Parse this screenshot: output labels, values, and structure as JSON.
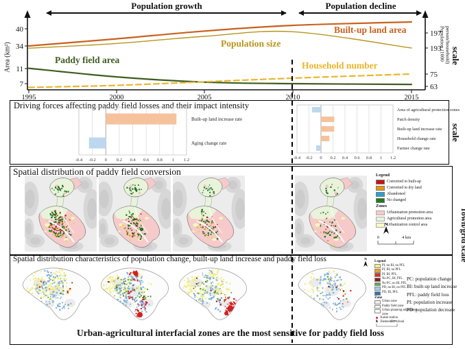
{
  "chart_data": [
    {
      "type": "line",
      "title": "",
      "x": [
        1995,
        2000,
        2005,
        2010,
        2015
      ],
      "period_labels": [
        "Population growth",
        "Population decline"
      ],
      "left_axis": {
        "label": "Area (km²)",
        "ticks": [
          40,
          34,
          11,
          7
        ]
      },
      "right_axis": {
        "label": "Population (1000 person/household)",
        "ticks": [
          197,
          193,
          75,
          63
        ]
      },
      "series": [
        {
          "name": "Built-up land area",
          "axis": "left",
          "color": "#c8611e",
          "dash": "solid",
          "values": [
            34,
            36.5,
            39.2,
            41.2,
            42.4
          ]
        },
        {
          "name": "Population size",
          "axis": "right",
          "color": "#b8941c",
          "dash": "solid",
          "values": [
            192.1,
            194.2,
            196.1,
            197.3,
            193
          ]
        },
        {
          "name": "Paddy field area",
          "axis": "left",
          "color": "#3f5c20",
          "dash": "solid",
          "values": [
            11.3,
            8.8,
            7.4,
            7,
            6.8
          ]
        },
        {
          "name": "Household number",
          "axis": "right",
          "color": "#e9b52a",
          "dash": "dashed",
          "values": [
            62,
            64,
            67.5,
            71,
            75.3
          ]
        }
      ]
    },
    {
      "type": "bar",
      "orientation": "horizontal",
      "categories": [
        "Built-up land increase rate",
        "Aging change rate"
      ],
      "values": [
        1.05,
        -0.25
      ],
      "positive_color": "#f6c29c",
      "negative_color": "#bdd7ee",
      "xticks": [
        -0.4,
        -0.2,
        0,
        0.2,
        0.4,
        0.6,
        0.8,
        1,
        1.2
      ]
    },
    {
      "type": "bar",
      "orientation": "horizontal",
      "categories": [
        "Area of agricultural protection zones",
        "Patch density",
        "Built-up land increase rate",
        "Household change rate",
        "Farmer change rate"
      ],
      "values": [
        -0.15,
        0.22,
        0.22,
        0.14,
        -0.08
      ],
      "positive_color": "#f6c29c",
      "negative_color": "#bdd7ee",
      "xticks": [
        -0.4,
        -0.2,
        0,
        0.2,
        0.4,
        0.6,
        0.8,
        1,
        1.2
      ]
    }
  ],
  "panel2": {
    "title": "Driving forces affecting paddy field losses and their impact intensity",
    "scale_label": "scale"
  },
  "panel3": {
    "title": "Spatial distribution of paddy field conversion",
    "legend": {
      "title": "Legend",
      "items": [
        {
          "label": "Converted to built-up",
          "color": "#cc1111"
        },
        {
          "label": "Converted to dry land",
          "color": "#e8960a"
        },
        {
          "label": "Abandoned",
          "color": "#2e9fd4"
        },
        {
          "label": "No changed",
          "color": "#1f7a1f"
        }
      ],
      "zones_title": "Zones",
      "zones": [
        {
          "label": "Urbanization promotion area",
          "color": "#f6caca"
        },
        {
          "label": "Agricultural promotion area",
          "color": "#e8f3da"
        },
        {
          "label": "Urbanization control area",
          "color": "#fbfbc4"
        }
      ],
      "north_label": "N",
      "scale_zero": "0",
      "scale_end": "4 km"
    },
    "maps": [
      {
        "name": "conversion-map-1995-2000",
        "dots": {
          "green": 110,
          "red": 30,
          "orange": 18,
          "yellow": 14
        }
      },
      {
        "name": "conversion-map-2000-2005",
        "dots": {
          "green": 95,
          "red": 14,
          "orange": 14,
          "yellow": 12
        }
      },
      {
        "name": "conversion-map-2005-2010",
        "dots": {
          "green": 70,
          "red": 8,
          "orange": 10,
          "yellow": 10
        }
      },
      {
        "name": "conversion-map-2010-2015",
        "dots": {
          "green": 45,
          "red": 5,
          "orange": 6,
          "yellow": 8
        }
      }
    ]
  },
  "panel4": {
    "title": "Spatial distribution characteristics of population change, built-up land increase and paddy field loss",
    "legend": {
      "title": "Legend",
      "items": [
        {
          "label": "PI, no BI, no PFL",
          "color": "#f5ef7d"
        },
        {
          "label": "PI, BI, no PFL",
          "color": "#f0a229"
        },
        {
          "label": "PI, BI, PFL",
          "color": "#e03020"
        },
        {
          "label": "No PC, BI, PFL",
          "color": "#8f1d1d"
        },
        {
          "label": "No PC, no BI, PFL",
          "color": "#52b24a"
        },
        {
          "label": "PD, no BI, no PFL",
          "color": "#a9cbe8"
        },
        {
          "label": "PD, BI, PFL",
          "color": "#2e74b5"
        }
      ],
      "zone_title": "Zone",
      "zones": [
        {
          "label": "Urban zone",
          "color": "#f0f0f0"
        },
        {
          "label": "Paddy field zone",
          "color": "#fdfdf2"
        },
        {
          "label": "Urban planning adjustment zone",
          "color": "#ffffff"
        }
      ],
      "points": [
        {
          "label": "Kaisei station",
          "symbol": "station-dot",
          "color": "#cc2222"
        },
        {
          "label": "Elementary school",
          "symbol": "school-figure",
          "color": "#555555"
        }
      ],
      "north_label": "N",
      "scale_zero": "0",
      "scale_end": "1 km"
    },
    "maps": [
      {
        "name": "pc-bi-pfl-map-1",
        "dots": {
          "yellow": 160,
          "blue": 100,
          "green": 10,
          "red": 6,
          "darkred": 4
        }
      },
      {
        "name": "pc-bi-pfl-map-2",
        "dots": {
          "yellow": 120,
          "blue": 130,
          "green": 45,
          "red": 45,
          "darkred": 12
        }
      },
      {
        "name": "pc-bi-pfl-map-3",
        "dots": {
          "yellow": 170,
          "blue": 70,
          "green": 30,
          "red": 50,
          "darkred": 8
        }
      },
      {
        "name": "pc-bi-pfl-map-4",
        "dots": {
          "yellow": 50,
          "blue": 90,
          "green": 8,
          "red": 8,
          "darkred": 3
        }
      }
    ],
    "abbreviations": [
      "PC: population change;",
      "BI: built-up land increase",
      "PFL: paddy field loss",
      "PI: population increase",
      "PD: population decrease"
    ],
    "conclusion": "Urban-agricultural interfacial zones are the most sensitive for paddy field loss"
  },
  "right_labels": {
    "top_scale": "scale",
    "mid_scale": "scale",
    "town_grid": "Town/grid scale"
  },
  "map_colors": {
    "conversion_dots": {
      "green": "#1f6e1f",
      "red": "#cc1111",
      "orange": "#e08a00",
      "yellow": "#ddd34a"
    },
    "pcbipfl_dots": {
      "yellow": "#f2ec7a",
      "blue": "#7fb2e0",
      "green": "#4ba83c",
      "red": "#d42020",
      "darkred": "#8a1a1a"
    },
    "hillshade": "#ececec",
    "promotion_pink": "#f6caca",
    "agricultural_green": "#e8f3da",
    "control_yellow": "#f8f8b8"
  }
}
